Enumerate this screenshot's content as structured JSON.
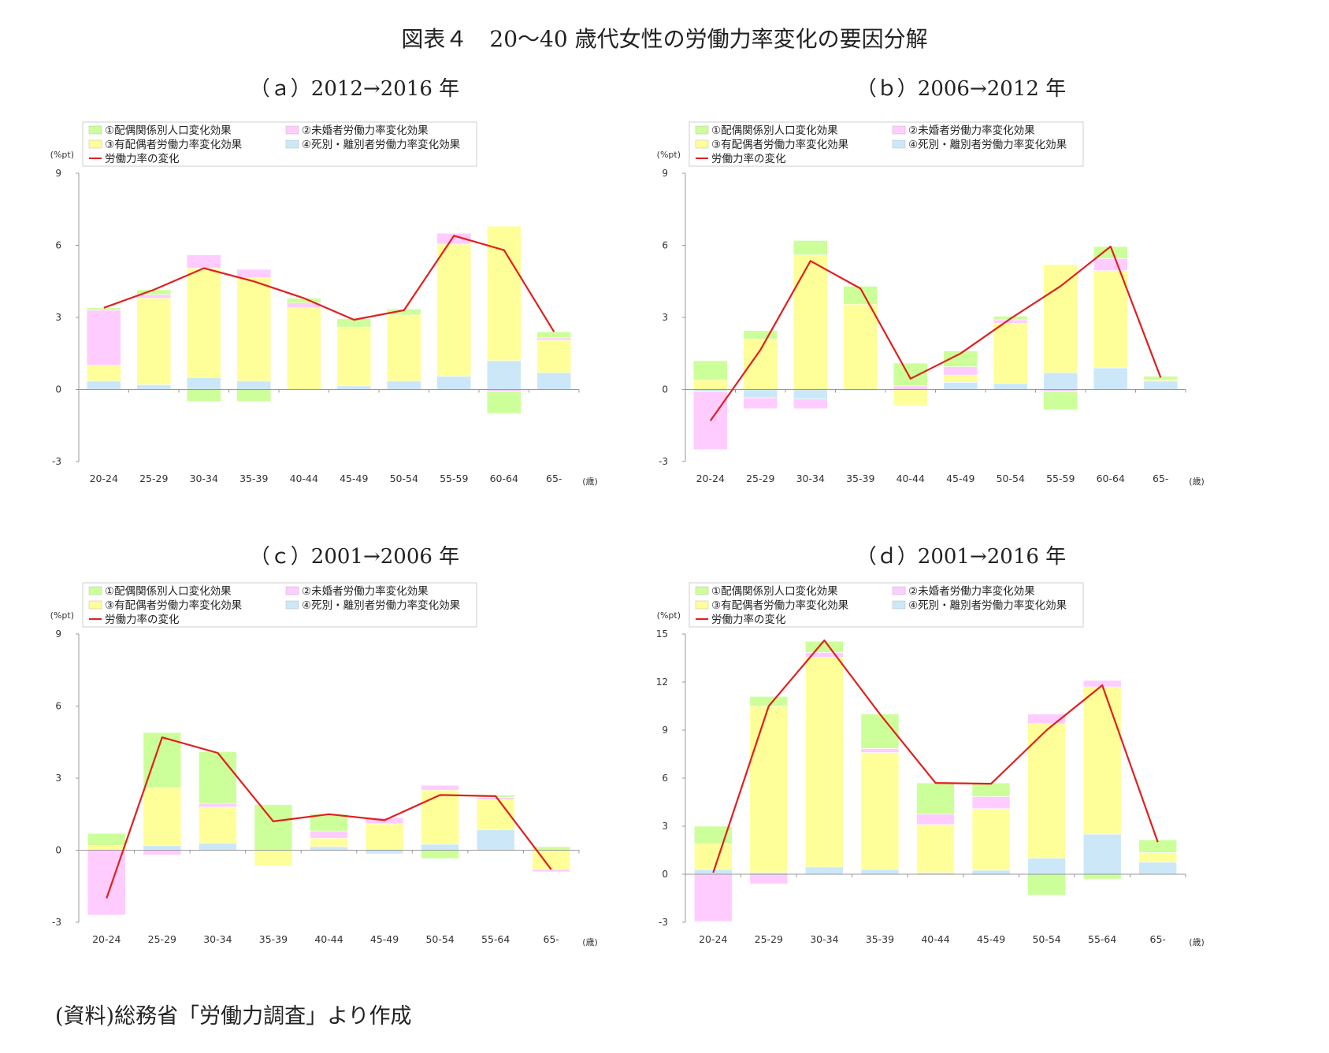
{
  "title": "図表４　20～40 歳代女性の労働力率変化の要因分解",
  "source": "(資料)総務省「労働力調査」より作成",
  "legend": {
    "items": [
      {
        "label": "①配偶関係別人口変化効果",
        "color": "#ccff99"
      },
      {
        "label": "②未婚者労働力率変化効果",
        "color": "#ffccff"
      },
      {
        "label": "③有配偶者労働力率変化効果",
        "color": "#ffff99"
      },
      {
        "label": "④死別・離別者労働力率変化効果",
        "color": "#cce8f8"
      }
    ],
    "line_label": "労働力率の変化",
    "line_color": "#e02020"
  },
  "y_unit": "(%pt)",
  "x_unit": "(歳)",
  "chart_data": [
    {
      "type": "bar",
      "title": "（ａ）2012→2016 年",
      "categories": [
        "20-24",
        "25-29",
        "30-34",
        "35-39",
        "40-44",
        "45-49",
        "50-54",
        "55-59",
        "60-64",
        "65-"
      ],
      "ylim": [
        -3,
        9
      ],
      "yticks": [
        -3,
        0,
        3,
        6,
        9
      ],
      "stacks": [
        [
          {
            "s": 3,
            "v": 0.35
          },
          {
            "s": 2,
            "v": 0.65
          },
          {
            "s": 1,
            "v": 2.3
          },
          {
            "s": 0,
            "v": 0.1
          }
        ],
        [
          {
            "s": 3,
            "v": 0.2
          },
          {
            "s": 2,
            "v": 3.6
          },
          {
            "s": 1,
            "v": 0.15
          },
          {
            "s": 0,
            "v": 0.2
          }
        ],
        [
          {
            "s": 3,
            "v": 0.5
          },
          {
            "s": 2,
            "v": 4.55
          },
          {
            "s": 1,
            "v": 0.55
          },
          {
            "s": 0,
            "v": -0.5
          }
        ],
        [
          {
            "s": 3,
            "v": 0.35
          },
          {
            "s": 2,
            "v": 4.3
          },
          {
            "s": 1,
            "v": 0.35
          },
          {
            "s": 0,
            "v": -0.5
          }
        ],
        [
          {
            "s": 2,
            "v": 3.4
          },
          {
            "s": 1,
            "v": 0.2
          },
          {
            "s": 0,
            "v": 0.2
          }
        ],
        [
          {
            "s": 3,
            "v": 0.15
          },
          {
            "s": 2,
            "v": 2.45
          },
          {
            "s": 0,
            "v": 0.35
          }
        ],
        [
          {
            "s": 3,
            "v": 0.35
          },
          {
            "s": 2,
            "v": 2.75
          },
          {
            "s": 0,
            "v": 0.25
          }
        ],
        [
          {
            "s": 3,
            "v": 0.55
          },
          {
            "s": 2,
            "v": 5.5
          },
          {
            "s": 1,
            "v": 0.45
          }
        ],
        [
          {
            "s": 3,
            "v": 1.2
          },
          {
            "s": 2,
            "v": 5.6
          },
          {
            "s": 1,
            "v": -0.1
          },
          {
            "s": 0,
            "v": -0.9
          }
        ],
        [
          {
            "s": 3,
            "v": 0.7
          },
          {
            "s": 2,
            "v": 1.35
          },
          {
            "s": 1,
            "v": 0.1
          },
          {
            "s": 0,
            "v": 0.25
          }
        ]
      ],
      "line": [
        3.4,
        4.15,
        5.05,
        4.5,
        3.8,
        2.9,
        3.3,
        6.4,
        5.8,
        2.4
      ]
    },
    {
      "type": "bar",
      "title": "（ｂ）2006→2012 年",
      "categories": [
        "20-24",
        "25-29",
        "30-34",
        "35-39",
        "40-44",
        "45-49",
        "50-54",
        "55-59",
        "60-64",
        "65-"
      ],
      "ylim": [
        -3,
        9
      ],
      "yticks": [
        -3,
        0,
        3,
        6,
        9
      ],
      "stacks": [
        [
          {
            "s": 2,
            "v": 0.4
          },
          {
            "s": 0,
            "v": 0.8
          },
          {
            "s": 3,
            "v": -0.1
          },
          {
            "s": 1,
            "v": -2.4
          }
        ],
        [
          {
            "s": 2,
            "v": 2.1
          },
          {
            "s": 0,
            "v": 0.35
          },
          {
            "s": 3,
            "v": -0.35
          },
          {
            "s": 1,
            "v": -0.45
          }
        ],
        [
          {
            "s": 2,
            "v": 5.6
          },
          {
            "s": 0,
            "v": 0.6
          },
          {
            "s": 3,
            "v": -0.4
          },
          {
            "s": 1,
            "v": -0.4
          }
        ],
        [
          {
            "s": 2,
            "v": 3.55
          },
          {
            "s": 0,
            "v": 0.75
          },
          {
            "s": 3,
            "v": -0.05
          }
        ],
        [
          {
            "s": 1,
            "v": 0.15
          },
          {
            "s": 0,
            "v": 0.95
          },
          {
            "s": 2,
            "v": -0.65
          }
        ],
        [
          {
            "s": 3,
            "v": 0.3
          },
          {
            "s": 2,
            "v": 0.3
          },
          {
            "s": 1,
            "v": 0.35
          },
          {
            "s": 0,
            "v": 0.65
          }
        ],
        [
          {
            "s": 3,
            "v": 0.25
          },
          {
            "s": 2,
            "v": 2.5
          },
          {
            "s": 1,
            "v": 0.15
          },
          {
            "s": 0,
            "v": 0.15
          }
        ],
        [
          {
            "s": 3,
            "v": 0.7
          },
          {
            "s": 2,
            "v": 4.5
          },
          {
            "s": 1,
            "v": -0.1
          },
          {
            "s": 0,
            "v": -0.75
          }
        ],
        [
          {
            "s": 3,
            "v": 0.9
          },
          {
            "s": 2,
            "v": 4.05
          },
          {
            "s": 1,
            "v": 0.5
          },
          {
            "s": 0,
            "v": 0.5
          }
        ],
        [
          {
            "s": 3,
            "v": 0.35
          },
          {
            "s": 2,
            "v": 0.05
          },
          {
            "s": 0,
            "v": 0.15
          }
        ]
      ],
      "line": [
        -1.3,
        1.65,
        5.35,
        4.2,
        0.45,
        1.5,
        2.95,
        4.3,
        5.95,
        0.5
      ]
    },
    {
      "type": "bar",
      "title": "（ｃ）2001→2006 年",
      "categories": [
        "20-24",
        "25-29",
        "30-34",
        "35-39",
        "40-44",
        "45-49",
        "50-54",
        "55-64",
        "65-"
      ],
      "ylim": [
        -3,
        9
      ],
      "yticks": [
        -3,
        0,
        3,
        6,
        9
      ],
      "stacks": [
        [
          {
            "s": 2,
            "v": 0.2
          },
          {
            "s": 0,
            "v": 0.5
          },
          {
            "s": 1,
            "v": -2.7
          }
        ],
        [
          {
            "s": 3,
            "v": 0.2
          },
          {
            "s": 2,
            "v": 2.4
          },
          {
            "s": 0,
            "v": 2.3
          },
          {
            "s": 1,
            "v": -0.2
          }
        ],
        [
          {
            "s": 3,
            "v": 0.3
          },
          {
            "s": 2,
            "v": 1.5
          },
          {
            "s": 1,
            "v": 0.15
          },
          {
            "s": 0,
            "v": 2.15
          }
        ],
        [
          {
            "s": 0,
            "v": 1.9
          },
          {
            "s": 2,
            "v": -0.65
          }
        ],
        [
          {
            "s": 3,
            "v": 0.15
          },
          {
            "s": 2,
            "v": 0.35
          },
          {
            "s": 1,
            "v": 0.3
          },
          {
            "s": 0,
            "v": 0.7
          }
        ],
        [
          {
            "s": 2,
            "v": 1.1
          },
          {
            "s": 1,
            "v": 0.25
          },
          {
            "s": 3,
            "v": -0.15
          }
        ],
        [
          {
            "s": 3,
            "v": 0.25
          },
          {
            "s": 2,
            "v": 2.25
          },
          {
            "s": 1,
            "v": 0.2
          },
          {
            "s": 0,
            "v": -0.35
          }
        ],
        [
          {
            "s": 3,
            "v": 0.85
          },
          {
            "s": 2,
            "v": 1.25
          },
          {
            "s": 1,
            "v": 0.1
          },
          {
            "s": 0,
            "v": 0.1
          }
        ],
        [
          {
            "s": 0,
            "v": 0.15
          },
          {
            "s": 2,
            "v": -0.8
          },
          {
            "s": 1,
            "v": -0.1
          }
        ]
      ],
      "line": [
        -2.0,
        4.7,
        4.05,
        1.2,
        1.5,
        1.25,
        2.3,
        2.25,
        -0.8
      ]
    },
    {
      "type": "bar",
      "title": "（ｄ）2001→2016 年",
      "categories": [
        "20-24",
        "25-29",
        "30-34",
        "35-39",
        "40-44",
        "45-49",
        "50-54",
        "55-64",
        "65-"
      ],
      "ylim": [
        -3,
        15
      ],
      "yticks": [
        -3,
        0,
        3,
        6,
        9,
        12,
        15
      ],
      "stacks": [
        [
          {
            "s": 3,
            "v": 0.3
          },
          {
            "s": 2,
            "v": 1.6
          },
          {
            "s": 0,
            "v": 1.1
          },
          {
            "s": 1,
            "v": -2.95
          }
        ],
        [
          {
            "s": 3,
            "v": 0.1
          },
          {
            "s": 2,
            "v": 10.4
          },
          {
            "s": 0,
            "v": 0.6
          },
          {
            "s": 1,
            "v": -0.6
          }
        ],
        [
          {
            "s": 3,
            "v": 0.45
          },
          {
            "s": 2,
            "v": 13.1
          },
          {
            "s": 1,
            "v": 0.3
          },
          {
            "s": 0,
            "v": 0.7
          }
        ],
        [
          {
            "s": 3,
            "v": 0.3
          },
          {
            "s": 2,
            "v": 7.3
          },
          {
            "s": 1,
            "v": 0.25
          },
          {
            "s": 0,
            "v": 2.15
          }
        ],
        [
          {
            "s": 3,
            "v": 0.1
          },
          {
            "s": 2,
            "v": 3.0
          },
          {
            "s": 1,
            "v": 0.65
          },
          {
            "s": 0,
            "v": 1.95
          }
        ],
        [
          {
            "s": 3,
            "v": 0.25
          },
          {
            "s": 2,
            "v": 3.85
          },
          {
            "s": 1,
            "v": 0.75
          },
          {
            "s": 0,
            "v": 0.85
          }
        ],
        [
          {
            "s": 3,
            "v": 1.0
          },
          {
            "s": 2,
            "v": 8.4
          },
          {
            "s": 1,
            "v": 0.6
          },
          {
            "s": 0,
            "v": -1.3
          }
        ],
        [
          {
            "s": 3,
            "v": 2.5
          },
          {
            "s": 2,
            "v": 9.2
          },
          {
            "s": 1,
            "v": 0.4
          },
          {
            "s": 0,
            "v": -0.3
          }
        ],
        [
          {
            "s": 3,
            "v": 0.75
          },
          {
            "s": 2,
            "v": 0.6
          },
          {
            "s": 0,
            "v": 0.8
          }
        ]
      ],
      "line": [
        0.1,
        10.5,
        14.6,
        10.0,
        5.7,
        5.65,
        9.0,
        11.8,
        2.0
      ]
    }
  ]
}
